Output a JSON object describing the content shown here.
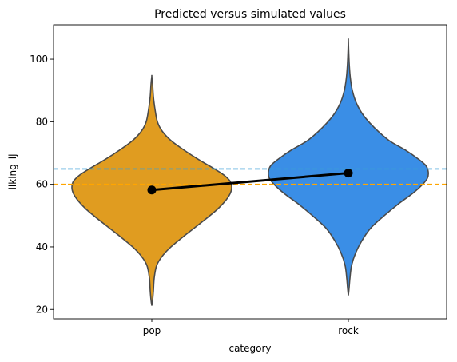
{
  "chart_data": {
    "type": "violin",
    "title": "Predicted versus simulated values",
    "xlabel": "category",
    "ylabel": "liking_ij",
    "categories": [
      "pop",
      "rock"
    ],
    "ylim": [
      17,
      111
    ],
    "yticks": [
      20,
      40,
      60,
      80,
      100
    ],
    "grid": false,
    "violins": [
      {
        "category": "pop",
        "color": "#e09c20",
        "range": [
          21.2,
          94.5
        ],
        "profile": [
          [
            21.2,
            0.0
          ],
          [
            23,
            0.01
          ],
          [
            26,
            0.02
          ],
          [
            30,
            0.03
          ],
          [
            34,
            0.06
          ],
          [
            37,
            0.13
          ],
          [
            40,
            0.24
          ],
          [
            44,
            0.43
          ],
          [
            48,
            0.63
          ],
          [
            52,
            0.82
          ],
          [
            55,
            0.93
          ],
          [
            57,
            0.98
          ],
          [
            59,
            1.0
          ],
          [
            61,
            0.98
          ],
          [
            63,
            0.9
          ],
          [
            65,
            0.78
          ],
          [
            68,
            0.58
          ],
          [
            71,
            0.4
          ],
          [
            74,
            0.24
          ],
          [
            77,
            0.13
          ],
          [
            80,
            0.07
          ],
          [
            84,
            0.04
          ],
          [
            88,
            0.02
          ],
          [
            92,
            0.01
          ],
          [
            94.5,
            0.0
          ]
        ]
      },
      {
        "category": "rock",
        "color": "#3a8ee6",
        "range": [
          24.5,
          106
        ],
        "profile": [
          [
            24.5,
            0.0
          ],
          [
            27,
            0.01
          ],
          [
            30,
            0.02
          ],
          [
            34,
            0.04
          ],
          [
            38,
            0.09
          ],
          [
            42,
            0.17
          ],
          [
            46,
            0.28
          ],
          [
            50,
            0.45
          ],
          [
            54,
            0.64
          ],
          [
            57,
            0.8
          ],
          [
            60,
            0.93
          ],
          [
            62,
            0.99
          ],
          [
            64,
            1.0
          ],
          [
            66,
            0.97
          ],
          [
            68,
            0.88
          ],
          [
            71,
            0.71
          ],
          [
            74,
            0.51
          ],
          [
            78,
            0.33
          ],
          [
            82,
            0.19
          ],
          [
            86,
            0.1
          ],
          [
            90,
            0.05
          ],
          [
            94,
            0.025
          ],
          [
            98,
            0.012
          ],
          [
            102,
            0.005
          ],
          [
            106,
            0.0
          ]
        ]
      }
    ],
    "point_line": {
      "color": "#000000",
      "points": [
        {
          "category": "pop",
          "value": 58.2
        },
        {
          "category": "rock",
          "value": 63.6
        }
      ]
    },
    "reference_lines": [
      {
        "value": 64.9,
        "color": "#3a9fd8",
        "style": "dashed"
      },
      {
        "value": 60.0,
        "color": "#ffa500",
        "style": "dashed"
      }
    ]
  }
}
